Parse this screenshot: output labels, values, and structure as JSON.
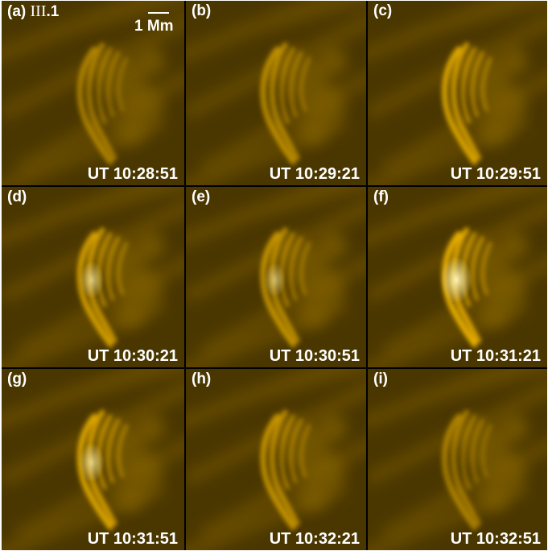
{
  "panels": [
    {
      "label": "(a)",
      "event": "III",
      "event_suffix": ".1",
      "time": "UT 10:28:51",
      "intensity": 0.55,
      "bright": 0.0
    },
    {
      "label": "(b)",
      "time": "UT 10:29:21",
      "intensity": 0.65,
      "bright": 0.0
    },
    {
      "label": "(c)",
      "time": "UT 10:29:51",
      "intensity": 0.85,
      "bright": 0.0
    },
    {
      "label": "(d)",
      "time": "UT 10:30:21",
      "intensity": 0.8,
      "bright": 0.4
    },
    {
      "label": "(e)",
      "time": "UT 10:30:51",
      "intensity": 0.7,
      "bright": 0.2
    },
    {
      "label": "(f)",
      "time": "UT 10:31:21",
      "intensity": 0.95,
      "bright": 1.0
    },
    {
      "label": "(g)",
      "time": "UT 10:31:51",
      "intensity": 0.85,
      "bright": 0.5
    },
    {
      "label": "(h)",
      "time": "UT 10:32:21",
      "intensity": 0.7,
      "bright": 0.0
    },
    {
      "label": "(i)",
      "time": "UT 10:32:51",
      "intensity": 0.55,
      "bright": 0.0
    }
  ],
  "scale_bar": {
    "label": "1 Mm"
  },
  "colors": {
    "background": "#4a3700",
    "loop": "#f5b800",
    "bright": "#fff3b0"
  }
}
